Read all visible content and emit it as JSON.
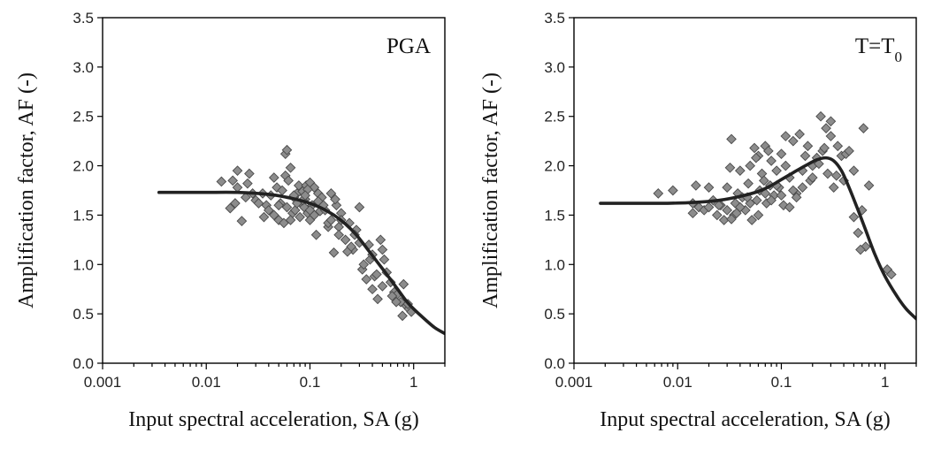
{
  "chart_data": [
    {
      "type": "scatter",
      "annotation": "PGA",
      "annotation_sub": "",
      "xlabel": "Input spectral acceleration, SA (g)",
      "ylabel": "Amplification factor, AF (-)",
      "xscale": "log",
      "xlim": [
        0.001,
        2
      ],
      "ylim": [
        0,
        3.5
      ],
      "xticks": [
        0.001,
        0.01,
        0.1,
        1
      ],
      "xtick_labels": [
        "0.001",
        "0.01",
        "0.1",
        "1"
      ],
      "yticks": [
        0,
        0.5,
        1,
        1.5,
        2,
        2.5,
        3,
        3.5
      ],
      "ytick_labels": [
        "0.0",
        "0.5",
        "1.0",
        "1.5",
        "2.0",
        "2.5",
        "3.0",
        "3.5"
      ],
      "grid": false,
      "marker_color": "#8c8c8c",
      "curve_color": "#222222",
      "curve": {
        "x": [
          0.0035,
          0.006,
          0.01,
          0.02,
          0.04,
          0.06,
          0.08,
          0.1,
          0.13,
          0.17,
          0.22,
          0.28,
          0.35,
          0.45,
          0.55,
          0.7,
          0.85,
          1.0,
          1.3,
          1.6,
          2.0
        ],
        "y": [
          1.73,
          1.73,
          1.73,
          1.73,
          1.71,
          1.68,
          1.65,
          1.62,
          1.57,
          1.5,
          1.41,
          1.3,
          1.17,
          1.02,
          0.9,
          0.75,
          0.63,
          0.55,
          0.44,
          0.36,
          0.3
        ]
      },
      "points": {
        "x": [
          0.014,
          0.017,
          0.019,
          0.02,
          0.022,
          0.024,
          0.026,
          0.02,
          0.025,
          0.018,
          0.03,
          0.032,
          0.035,
          0.038,
          0.04,
          0.042,
          0.045,
          0.048,
          0.05,
          0.052,
          0.054,
          0.056,
          0.058,
          0.06,
          0.058,
          0.062,
          0.065,
          0.068,
          0.07,
          0.072,
          0.075,
          0.078,
          0.08,
          0.082,
          0.085,
          0.088,
          0.09,
          0.092,
          0.095,
          0.1,
          0.1,
          0.105,
          0.11,
          0.115,
          0.12,
          0.125,
          0.13,
          0.14,
          0.15,
          0.16,
          0.17,
          0.18,
          0.19,
          0.2,
          0.22,
          0.24,
          0.26,
          0.28,
          0.3,
          0.32,
          0.35,
          0.38,
          0.4,
          0.42,
          0.45,
          0.48,
          0.5,
          0.55,
          0.6,
          0.65,
          0.7,
          0.75,
          0.8,
          0.85,
          0.9,
          0.95,
          0.045,
          0.05,
          0.065,
          0.07,
          0.085,
          0.095,
          0.11,
          0.12,
          0.135,
          0.15,
          0.175,
          0.2,
          0.23,
          0.27,
          0.3,
          0.33,
          0.37,
          0.4,
          0.44,
          0.5,
          0.52,
          0.62,
          0.68,
          0.78,
          0.88,
          0.06,
          0.075,
          0.09,
          0.1,
          0.16,
          0.19,
          0.25,
          0.028,
          0.036
        ],
        "y": [
          1.84,
          1.57,
          1.62,
          1.78,
          1.44,
          1.68,
          1.92,
          1.95,
          1.82,
          1.85,
          1.65,
          1.62,
          1.72,
          1.6,
          1.55,
          1.7,
          1.88,
          1.78,
          1.45,
          1.62,
          1.75,
          1.42,
          2.12,
          2.16,
          1.9,
          1.85,
          1.98,
          1.52,
          1.68,
          1.55,
          1.72,
          1.8,
          1.48,
          1.62,
          1.74,
          1.58,
          1.66,
          1.8,
          1.52,
          1.83,
          1.45,
          1.6,
          1.78,
          1.3,
          1.72,
          1.54,
          1.68,
          1.55,
          1.38,
          1.72,
          1.12,
          1.6,
          1.38,
          1.52,
          1.25,
          1.42,
          1.15,
          1.35,
          1.22,
          0.95,
          0.85,
          1.05,
          0.75,
          0.88,
          0.65,
          1.25,
          1.15,
          0.92,
          0.82,
          0.72,
          0.7,
          0.62,
          0.8,
          0.58,
          0.55,
          0.52,
          1.5,
          1.6,
          1.45,
          1.7,
          1.65,
          1.76,
          1.5,
          1.64,
          1.6,
          1.42,
          1.66,
          1.45,
          1.13,
          1.3,
          1.58,
          1.0,
          1.2,
          1.1,
          0.9,
          0.78,
          1.05,
          0.68,
          0.62,
          0.48,
          0.6,
          1.58,
          1.62,
          1.7,
          1.55,
          1.45,
          1.3,
          1.18,
          1.72,
          1.48
        ]
      }
    },
    {
      "type": "scatter",
      "annotation": "T=T",
      "annotation_sub": "0",
      "xlabel": "Input spectral acceleration, SA (g)",
      "ylabel": "Amplification factor, AF (-)",
      "xscale": "log",
      "xlim": [
        0.001,
        2
      ],
      "ylim": [
        0,
        3.5
      ],
      "xticks": [
        0.001,
        0.01,
        0.1,
        1
      ],
      "xtick_labels": [
        "0.001",
        "0.01",
        "0.1",
        "1"
      ],
      "yticks": [
        0,
        0.5,
        1,
        1.5,
        2,
        2.5,
        3,
        3.5
      ],
      "ytick_labels": [
        "0.0",
        "0.5",
        "1.0",
        "1.5",
        "2.0",
        "2.5",
        "3.0",
        "3.5"
      ],
      "grid": false,
      "marker_color": "#8c8c8c",
      "curve_color": "#222222",
      "curve": {
        "x": [
          0.0018,
          0.004,
          0.008,
          0.015,
          0.025,
          0.04,
          0.06,
          0.08,
          0.1,
          0.13,
          0.17,
          0.22,
          0.27,
          0.32,
          0.38,
          0.45,
          0.55,
          0.65,
          0.8,
          1.0,
          1.3,
          1.6,
          2.0
        ],
        "y": [
          1.62,
          1.62,
          1.62,
          1.63,
          1.65,
          1.69,
          1.74,
          1.8,
          1.86,
          1.93,
          2.0,
          2.06,
          2.08,
          2.05,
          1.95,
          1.78,
          1.55,
          1.35,
          1.1,
          0.88,
          0.68,
          0.55,
          0.45
        ]
      },
      "points": {
        "x": [
          0.0065,
          0.009,
          0.014,
          0.014,
          0.015,
          0.016,
          0.018,
          0.02,
          0.022,
          0.024,
          0.026,
          0.028,
          0.03,
          0.032,
          0.033,
          0.035,
          0.036,
          0.038,
          0.04,
          0.042,
          0.045,
          0.048,
          0.05,
          0.052,
          0.055,
          0.058,
          0.06,
          0.062,
          0.065,
          0.068,
          0.07,
          0.072,
          0.075,
          0.078,
          0.08,
          0.085,
          0.09,
          0.095,
          0.1,
          0.105,
          0.11,
          0.12,
          0.13,
          0.14,
          0.15,
          0.16,
          0.17,
          0.18,
          0.19,
          0.2,
          0.22,
          0.24,
          0.25,
          0.27,
          0.28,
          0.3,
          0.32,
          0.35,
          0.38,
          0.4,
          0.42,
          0.45,
          0.5,
          0.55,
          0.6,
          0.65,
          0.7,
          1.05,
          1.15,
          0.025,
          0.03,
          0.04,
          0.05,
          0.06,
          0.07,
          0.08,
          0.09,
          0.1,
          0.12,
          0.14,
          0.16,
          0.2,
          0.23,
          0.26,
          0.3,
          0.34,
          0.037,
          0.047,
          0.057,
          0.11,
          0.13,
          0.5,
          0.58,
          0.62,
          0.02,
          0.033
        ],
        "y": [
          1.72,
          1.75,
          1.52,
          1.62,
          1.8,
          1.58,
          1.55,
          1.78,
          1.65,
          1.5,
          1.6,
          1.45,
          1.55,
          1.98,
          2.27,
          1.5,
          1.62,
          1.72,
          1.95,
          1.68,
          1.55,
          1.82,
          2.0,
          1.45,
          2.18,
          1.65,
          2.1,
          1.75,
          1.92,
          1.85,
          2.2,
          1.62,
          2.15,
          1.8,
          2.05,
          1.7,
          1.95,
          1.78,
          2.12,
          1.6,
          2.0,
          1.88,
          2.25,
          1.72,
          2.32,
          1.95,
          2.1,
          2.2,
          1.85,
          2.0,
          2.08,
          2.5,
          2.15,
          2.38,
          1.92,
          2.45,
          1.78,
          2.2,
          2.1,
          1.85,
          2.12,
          2.15,
          1.48,
          1.32,
          1.55,
          1.18,
          1.8,
          0.95,
          0.9,
          1.6,
          1.78,
          1.58,
          1.62,
          1.5,
          1.72,
          1.65,
          1.8,
          1.7,
          1.58,
          1.68,
          1.78,
          1.88,
          2.02,
          2.18,
          2.3,
          1.9,
          1.52,
          1.68,
          2.08,
          2.3,
          1.75,
          1.95,
          1.15,
          2.38,
          1.58,
          1.46
        ]
      }
    }
  ]
}
